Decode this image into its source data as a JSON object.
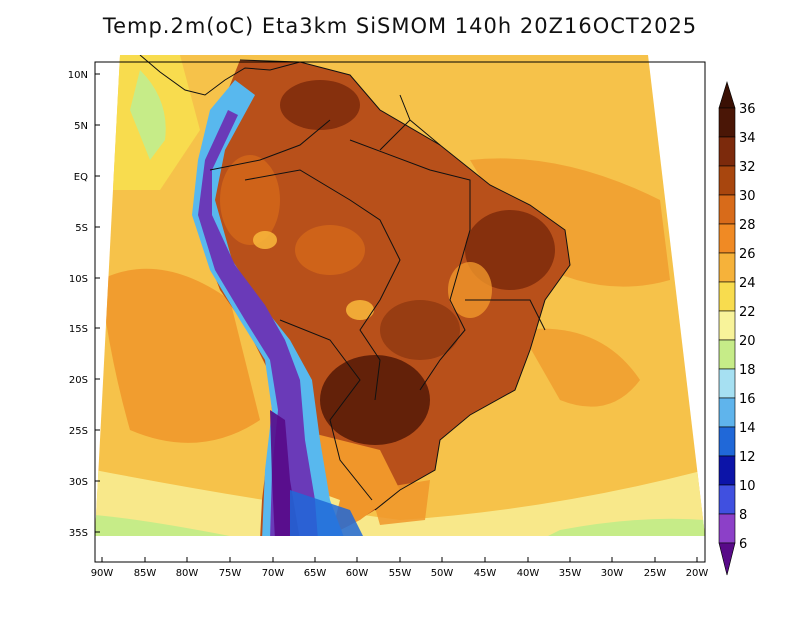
{
  "title": "Temp.2m(oC) Eta3km SiSMOM 140h 20Z16OCT2025",
  "lat_ticks": [
    "10N",
    "5N",
    "EQ",
    "5S",
    "10S",
    "15S",
    "20S",
    "25S",
    "30S",
    "35S"
  ],
  "lon_ticks": [
    "90W",
    "85W",
    "80W",
    "75W",
    "70W",
    "65W",
    "60W",
    "55W",
    "50W",
    "45W",
    "40W",
    "35W",
    "30W",
    "25W",
    "20W"
  ],
  "colorbar": {
    "labels": [
      "36",
      "34",
      "32",
      "30",
      "28",
      "26",
      "24",
      "22",
      "20",
      "18",
      "16",
      "14",
      "12",
      "10",
      "8",
      "6"
    ],
    "colors": [
      "#4a1606",
      "#7c2a0c",
      "#a8460e",
      "#d86b1a",
      "#f08a24",
      "#f6b23a",
      "#f8dc4e",
      "#f8f39a",
      "#c6ec88",
      "#a6e0f2",
      "#5fb4ec",
      "#2068d8",
      "#0c14a8",
      "#4050e0",
      "#8c40c8",
      "#580a88"
    ]
  },
  "palette": {
    "ocean_warm": "#f6c24a",
    "ocean_hot": "#f0962a",
    "ocean_cool": "#f8e88a",
    "land_hot": "#b8501a",
    "land_very_hot": "#8a3410",
    "andes_cold": "#6a3ab8",
    "andes_cool": "#58b8ee"
  }
}
